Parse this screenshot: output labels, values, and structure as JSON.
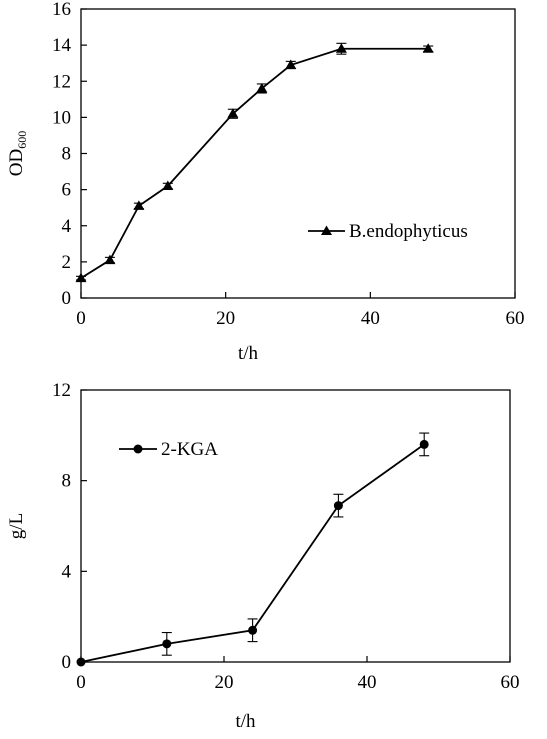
{
  "chart_data": [
    {
      "type": "line",
      "xlabel": "t/h",
      "ylabel": "OD",
      "ylabel_subscript": "600",
      "xlim": [
        0,
        60
      ],
      "ylim": [
        0,
        16
      ],
      "xticks": [
        0,
        20,
        40,
        60
      ],
      "yticks": [
        0,
        2,
        4,
        6,
        8,
        10,
        12,
        14,
        16
      ],
      "grid": false,
      "legend_position": "right",
      "marker": "triangle",
      "series": [
        {
          "name": "B.endophyticus",
          "x": [
            0,
            4,
            8,
            12,
            21,
            25,
            29,
            36,
            48
          ],
          "y": [
            1.1,
            2.1,
            5.1,
            6.2,
            10.2,
            11.6,
            12.9,
            13.8,
            13.8
          ],
          "err": [
            0.1,
            0.15,
            0.15,
            0.15,
            0.25,
            0.25,
            0.2,
            0.3,
            0.15
          ]
        }
      ]
    },
    {
      "type": "line",
      "xlabel": "t/h",
      "ylabel": "g/L",
      "xlim": [
        0,
        60
      ],
      "ylim": [
        0,
        12
      ],
      "xticks": [
        0,
        20,
        40,
        60
      ],
      "yticks": [
        0,
        4,
        8,
        12
      ],
      "grid": false,
      "legend_position": "top-left",
      "marker": "circle",
      "series": [
        {
          "name": "2-KGA",
          "x": [
            0,
            12,
            24,
            36,
            48
          ],
          "y": [
            0,
            0.8,
            1.4,
            6.9,
            9.6
          ],
          "err": [
            0,
            0.5,
            0.5,
            0.5,
            0.5
          ]
        }
      ]
    }
  ]
}
